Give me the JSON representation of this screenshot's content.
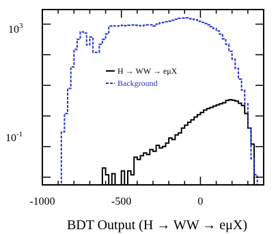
{
  "chart_data": {
    "type": "line",
    "title": "",
    "xlabel": "BDT Output (H → WW → eμX)",
    "ylabel": "",
    "y_scale": "log",
    "xlim": [
      -1000,
      400
    ],
    "ylim": [
      0.0056,
      3000
    ],
    "x_ticks": [
      {
        "value": -1000,
        "label": "-1000"
      },
      {
        "value": -500,
        "label": "-500"
      },
      {
        "value": 0,
        "label": "0"
      }
    ],
    "y_ticks": [
      {
        "value": 1000,
        "base": "10",
        "exponent": "3"
      },
      {
        "value": 0.1,
        "base": "10",
        "exponent": "-1"
      }
    ],
    "legend": {
      "position": "right-middle",
      "entries": [
        {
          "label": "H → WW → eμX",
          "color": "#000000",
          "style": "solid"
        },
        {
          "label": "Background",
          "color": "#2233cc",
          "style": "dashed"
        }
      ]
    },
    "series": [
      {
        "name": "H → WW → eμX",
        "color": "#000000",
        "style": "solid",
        "x": [
          -1000,
          -620,
          -600,
          -580,
          -560,
          -540,
          -520,
          -500,
          -480,
          -460,
          -440,
          -420,
          -400,
          -380,
          -360,
          -340,
          -320,
          -300,
          -280,
          -260,
          -240,
          -220,
          -200,
          -180,
          -160,
          -140,
          -120,
          -100,
          -80,
          -60,
          -40,
          -20,
          0,
          20,
          40,
          60,
          80,
          100,
          120,
          140,
          160,
          180,
          200,
          220,
          240,
          260,
          280,
          300,
          320,
          340,
          360
        ],
        "y": [
          0.0056,
          0.02,
          0.012,
          0.0056,
          0.013,
          0.0056,
          0.0056,
          0.016,
          0.0056,
          0.016,
          0.012,
          0.045,
          0.038,
          0.05,
          0.062,
          0.055,
          0.08,
          0.07,
          0.11,
          0.09,
          0.1,
          0.13,
          0.19,
          0.17,
          0.24,
          0.28,
          0.4,
          0.5,
          0.62,
          0.75,
          0.92,
          1.1,
          1.3,
          1.55,
          1.75,
          1.9,
          2.1,
          2.3,
          2.5,
          2.7,
          3.2,
          3.4,
          3.25,
          3.05,
          2.6,
          2.2,
          1.2,
          0.4,
          0.12,
          0.0056,
          0.0056
        ]
      },
      {
        "name": "Background",
        "color": "#2233cc",
        "style": "dashed",
        "x": [
          -1000,
          -880,
          -860,
          -840,
          -820,
          -800,
          -780,
          -760,
          -740,
          -720,
          -700,
          -680,
          -660,
          -640,
          -620,
          -600,
          -580,
          -560,
          -540,
          -520,
          -500,
          -480,
          -460,
          -440,
          -420,
          -400,
          -380,
          -360,
          -340,
          -320,
          -300,
          -280,
          -260,
          -240,
          -220,
          -200,
          -180,
          -160,
          -140,
          -120,
          -100,
          -80,
          -60,
          -40,
          -20,
          0,
          20,
          40,
          60,
          80,
          100,
          120,
          140,
          160,
          180,
          200,
          220,
          240,
          260,
          280,
          300,
          320,
          340,
          360
        ],
        "y": [
          0.0056,
          0.3,
          1.2,
          8,
          40,
          150,
          320,
          560,
          510,
          210,
          380,
          120,
          120,
          220,
          320,
          480,
          860,
          880,
          860,
          880,
          920,
          890,
          920,
          940,
          920,
          900,
          880,
          920,
          950,
          950,
          870,
          1000,
          1100,
          1150,
          1200,
          1250,
          1350,
          1450,
          1550,
          1580,
          1620,
          1520,
          1450,
          1400,
          1250,
          1150,
          1050,
          950,
          830,
          720,
          600,
          480,
          330,
          220,
          130,
          72,
          36,
          16,
          7,
          2.5,
          0.4,
          0.04,
          0.012,
          0.0056
        ]
      }
    ]
  }
}
